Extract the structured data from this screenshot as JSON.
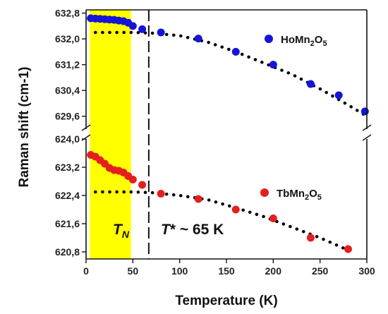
{
  "chart_data": {
    "type": "scatter",
    "xlabel": "Temperature (K)",
    "ylabel": "Raman shift (cm-1)",
    "xlim": [
      0,
      300
    ],
    "x_ticks": [
      "0",
      "50",
      "100",
      "150",
      "200",
      "250",
      "300"
    ],
    "x_tick_values": [
      0,
      50,
      100,
      150,
      200,
      250,
      300
    ],
    "upper_panel": {
      "ylim": [
        629.2,
        632.9
      ],
      "y_ticks": [
        "629,6",
        "630,4",
        "631,2",
        "632,0",
        "632,8"
      ],
      "y_tick_values": [
        629.6,
        630.4,
        631.2,
        632.0,
        632.8
      ]
    },
    "lower_panel": {
      "ylim": [
        620.6,
        624.0
      ],
      "y_ticks": [
        "620,8",
        "621,6",
        "622,4",
        "623,2",
        "624,0"
      ],
      "y_tick_values": [
        620.8,
        621.6,
        622.4,
        623.2,
        624.0
      ]
    },
    "series": [
      {
        "name_parts": [
          "HoMn",
          "2",
          "O",
          "5"
        ],
        "panel": "upper",
        "color": "#1515d8",
        "x": [
          5,
          10,
          15,
          20,
          25,
          30,
          35,
          40,
          45,
          50,
          60,
          80,
          120,
          160,
          200,
          240,
          270,
          298
        ],
        "y": [
          632.64,
          632.63,
          632.62,
          632.61,
          632.6,
          632.59,
          632.57,
          632.55,
          632.5,
          632.4,
          632.3,
          632.2,
          632.01,
          631.6,
          631.2,
          630.6,
          630.25,
          629.75
        ]
      },
      {
        "name_parts": [
          "TbMn",
          "2",
          "O",
          "5"
        ],
        "panel": "lower",
        "color": "#e51f1f",
        "x": [
          5,
          10,
          15,
          20,
          25,
          30,
          35,
          40,
          45,
          50,
          60,
          80,
          120,
          160,
          200,
          240,
          280
        ],
        "y": [
          623.55,
          623.5,
          623.4,
          623.3,
          623.18,
          623.12,
          623.1,
          623.05,
          622.95,
          622.85,
          622.7,
          622.45,
          622.3,
          622.0,
          621.75,
          621.2,
          620.88
        ]
      }
    ],
    "fits": [
      {
        "panel": "upper",
        "x": [
          10,
          30,
          50,
          70,
          100,
          130,
          160,
          190,
          220,
          250,
          280,
          300
        ],
        "y": [
          632.2,
          632.2,
          632.2,
          632.18,
          632.1,
          631.9,
          631.6,
          631.25,
          630.9,
          630.45,
          629.95,
          629.6
        ]
      },
      {
        "panel": "lower",
        "x": [
          10,
          30,
          50,
          70,
          100,
          130,
          160,
          190,
          220,
          250,
          280
        ],
        "y": [
          622.5,
          622.5,
          622.5,
          622.48,
          622.4,
          622.28,
          622.05,
          621.8,
          621.5,
          621.2,
          620.85
        ]
      }
    ],
    "shaded_region": {
      "x": [
        4,
        48
      ],
      "color": "#ffff00"
    },
    "vline_x": 67,
    "annotations": {
      "tn": {
        "main": "T",
        "sub": "N"
      },
      "tstar": {
        "main": "T",
        "rest": "* ~ 65 K"
      }
    }
  }
}
